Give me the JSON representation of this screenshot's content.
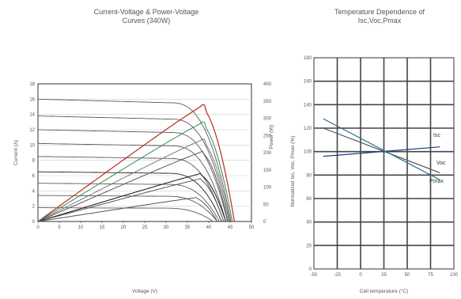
{
  "chart_data": [
    {
      "type": "line",
      "title": "Current-Voltage & Power-Voltage\nCurves (340W)",
      "xlabel": "Voltage (V)",
      "ylabel": "Current (A)",
      "y2label": "Power (W)",
      "xlim": [
        0,
        50
      ],
      "ylim": [
        0,
        18
      ],
      "y2lim": [
        0,
        400
      ],
      "xticks": [
        "0",
        "5",
        "10",
        "15",
        "20",
        "25",
        "30",
        "35",
        "40",
        "45",
        "50"
      ],
      "yticks": [
        "0",
        "2",
        "4",
        "6",
        "8",
        "10",
        "12",
        "14",
        "16",
        "18"
      ],
      "y2ticks": [
        "0",
        "50",
        "100",
        "150",
        "200",
        "250",
        "300",
        "350",
        "400"
      ],
      "grid": true,
      "iv_curves": [
        {
          "isc": 16.0,
          "vmp": 38.0,
          "voc": 45.2,
          "color": "#5a5a5a"
        },
        {
          "isc": 13.8,
          "vmp": 38.0,
          "voc": 44.8,
          "color": "#5a5a5a"
        },
        {
          "isc": 12.0,
          "vmp": 38.0,
          "voc": 44.4,
          "color": "#5a5a5a"
        },
        {
          "isc": 10.2,
          "vmp": 38.0,
          "voc": 44.0,
          "color": "#5a5a5a"
        },
        {
          "isc": 8.5,
          "vmp": 37.5,
          "voc": 43.5,
          "color": "#5a5a5a"
        },
        {
          "isc": 6.5,
          "vmp": 37.0,
          "voc": 43.0,
          "color": "#222222"
        },
        {
          "isc": 5.0,
          "vmp": 37.0,
          "voc": 42.5,
          "color": "#5a5a5a"
        },
        {
          "isc": 3.4,
          "vmp": 36.5,
          "voc": 42.0,
          "color": "#5a5a5a"
        },
        {
          "isc": 1.8,
          "vmp": 36.0,
          "voc": 41.0,
          "color": "#5a5a5a"
        }
      ],
      "pv_curves": [
        {
          "pmax": 340,
          "vmp": 38.0,
          "voc": 46.0,
          "color": "#c0392b"
        },
        {
          "pmax": 290,
          "vmp": 38.0,
          "voc": 45.5,
          "color": "#2e8b57"
        },
        {
          "pmax": 240,
          "vmp": 38.0,
          "voc": 45.0,
          "color": "#7a7a7a"
        },
        {
          "pmax": 205,
          "vmp": 38.0,
          "voc": 44.5,
          "color": "#555555"
        },
        {
          "pmax": 140,
          "vmp": 37.5,
          "voc": 44.0,
          "color": "#111111"
        },
        {
          "pmax": 125,
          "vmp": 37.5,
          "voc": 43.5,
          "color": "#555555"
        },
        {
          "pmax": 70,
          "vmp": 36.5,
          "voc": 42.0,
          "color": "#555555"
        }
      ]
    },
    {
      "type": "line",
      "title": "Temperature Dependence of\nIsc,Voc,Pmax",
      "xlabel": "Cell temperature (°C)",
      "ylabel": "Normalized Isc, Voc, Pmax (%)",
      "xlim": [
        -50,
        100
      ],
      "ylim": [
        0,
        180
      ],
      "xticks": [
        "-50",
        "-25",
        "0",
        "25",
        "50",
        "75",
        "100"
      ],
      "yticks": [
        "0",
        "20",
        "40",
        "60",
        "80",
        "100",
        "120",
        "140",
        "160",
        "180"
      ],
      "grid": true,
      "series": [
        {
          "name": "Isc",
          "x": [
            -40,
            85
          ],
          "y": [
            96,
            104
          ],
          "color": "#1f3f7f"
        },
        {
          "name": "Voc",
          "x": [
            -40,
            85
          ],
          "y": [
            120,
            82
          ],
          "color": "#555555"
        },
        {
          "name": "Pmax",
          "x": [
            -40,
            85
          ],
          "y": [
            128,
            76
          ],
          "color": "#2a6f8f"
        }
      ]
    }
  ]
}
